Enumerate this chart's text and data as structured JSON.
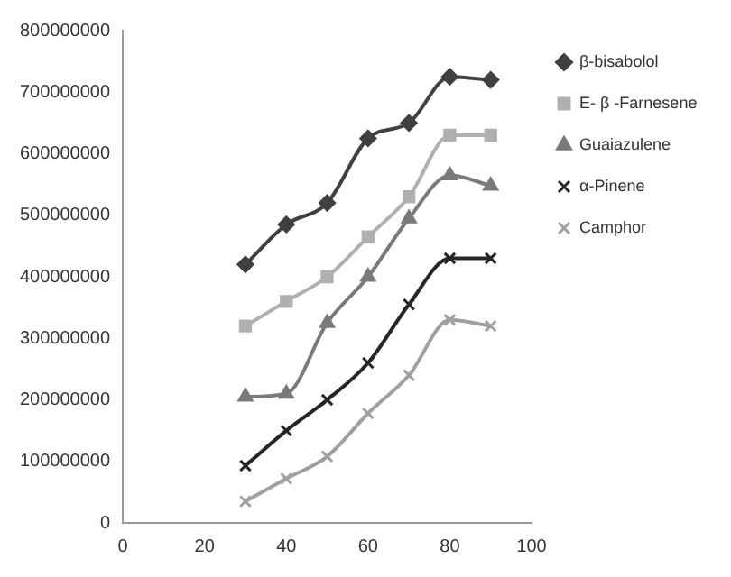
{
  "chart_data": {
    "type": "line",
    "x": [
      30,
      40,
      50,
      60,
      70,
      80,
      90
    ],
    "series": [
      {
        "name": "β-bisabolol",
        "color": "#404040",
        "marker": "diamond",
        "values": [
          420000000,
          485000000,
          520000000,
          625000000,
          650000000,
          725000000,
          720000000
        ]
      },
      {
        "name": "E- β -Farnesene",
        "color": "#b0b0b0",
        "marker": "square",
        "values": [
          320000000,
          360000000,
          400000000,
          465000000,
          530000000,
          630000000,
          630000000
        ]
      },
      {
        "name": "Guaiazulene",
        "color": "#7a7a7a",
        "marker": "triangle",
        "values": [
          205000000,
          210000000,
          325000000,
          400000000,
          495000000,
          565000000,
          548000000
        ]
      },
      {
        "name": "α-Pinene",
        "color": "#262626",
        "marker": "cross",
        "values": [
          93000000,
          150000000,
          200000000,
          260000000,
          355000000,
          430000000,
          430000000
        ]
      },
      {
        "name": "Camphor",
        "color": "#a0a0a0",
        "marker": "cross",
        "values": [
          35000000,
          72000000,
          108000000,
          178000000,
          240000000,
          330000000,
          320000000
        ]
      }
    ],
    "xlim": [
      0,
      100
    ],
    "xticks": [
      0,
      20,
      40,
      60,
      80,
      100
    ],
    "ylim": [
      0,
      800000000
    ],
    "yticks": [
      0,
      100000000,
      200000000,
      300000000,
      400000000,
      500000000,
      600000000,
      700000000,
      800000000
    ],
    "grid": false,
    "legend": "top right",
    "line_style": "solid"
  }
}
